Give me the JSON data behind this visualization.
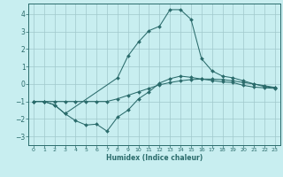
{
  "title": "",
  "xlabel": "Humidex (Indice chaleur)",
  "ylabel": "",
  "background_color": "#c8eef0",
  "grid_color": "#a0c8cc",
  "line_color": "#2a6b6b",
  "xlim": [
    -0.5,
    23.5
  ],
  "ylim": [
    -3.5,
    4.6
  ],
  "yticks": [
    -3,
    -2,
    -1,
    0,
    1,
    2,
    3,
    4
  ],
  "xticks": [
    0,
    1,
    2,
    3,
    4,
    5,
    6,
    7,
    8,
    9,
    10,
    11,
    12,
    13,
    14,
    15,
    16,
    17,
    18,
    19,
    20,
    21,
    22,
    23
  ],
  "series": [
    {
      "x": [
        0,
        1,
        2,
        3,
        4,
        5,
        6,
        7,
        8,
        9,
        10,
        11,
        12,
        13,
        14,
        15,
        16,
        17,
        18,
        19,
        20,
        21,
        22,
        23
      ],
      "y": [
        -1.0,
        -1.0,
        -1.0,
        -1.0,
        -1.0,
        -1.0,
        -1.0,
        -1.0,
        -0.85,
        -0.65,
        -0.45,
        -0.25,
        -0.05,
        0.08,
        0.18,
        0.25,
        0.28,
        0.28,
        0.25,
        0.18,
        0.08,
        0.0,
        -0.1,
        -0.2
      ]
    },
    {
      "x": [
        0,
        1,
        2,
        3,
        4,
        5,
        6,
        7,
        8,
        9,
        10,
        11,
        12,
        13,
        14,
        15,
        16,
        17,
        18,
        19,
        20,
        21,
        22,
        23
      ],
      "y": [
        -1.0,
        -1.0,
        -1.2,
        -1.7,
        -2.1,
        -2.35,
        -2.3,
        -2.7,
        -1.9,
        -1.5,
        -0.85,
        -0.45,
        0.05,
        0.3,
        0.45,
        0.38,
        0.28,
        0.2,
        0.12,
        0.08,
        -0.08,
        -0.18,
        -0.22,
        -0.25
      ]
    },
    {
      "x": [
        0,
        1,
        2,
        3,
        8,
        9,
        10,
        11,
        12,
        13,
        14,
        15,
        16,
        17,
        18,
        19,
        20,
        21,
        22,
        23
      ],
      "y": [
        -1.0,
        -1.0,
        -1.2,
        -1.7,
        0.35,
        1.6,
        2.4,
        3.05,
        3.3,
        4.25,
        4.25,
        3.7,
        1.45,
        0.75,
        0.45,
        0.35,
        0.18,
        0.0,
        -0.15,
        -0.22
      ]
    }
  ]
}
